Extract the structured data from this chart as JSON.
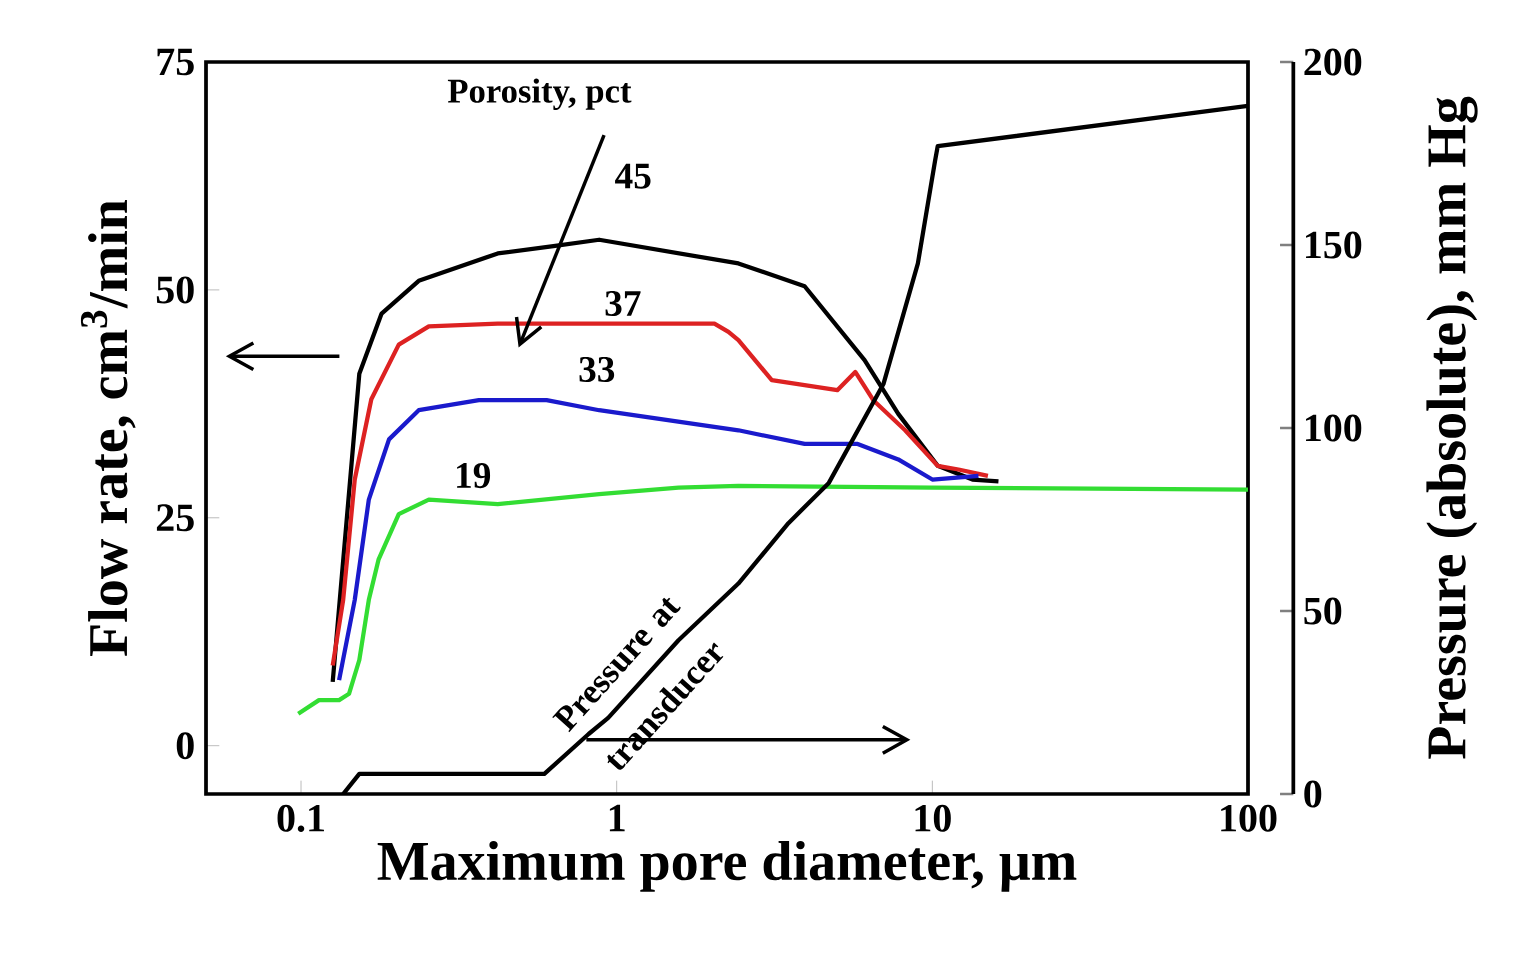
{
  "chart_data": {
    "type": "line",
    "xlabel": "Maximum pore diameter, μm",
    "ylabel": "Flow rate, cm$^{3}$/min",
    "y2label": "Pressure (absolute), mm Hg",
    "log": "x",
    "grid": false,
    "legend": false,
    "marker": "none",
    "line_style": "solid",
    "xlim": [
      0.05,
      100
    ],
    "xticks": [
      0.1,
      1,
      10,
      100
    ],
    "ylim": [
      -5.3,
      75
    ],
    "yticks": [
      0,
      25,
      50,
      75
    ],
    "y2lim": [
      0,
      200
    ],
    "y2ticks": [
      0,
      50,
      100,
      150,
      200
    ],
    "annotations": [
      "Porosity, pct"
    ],
    "series": [
      {
        "name": "45",
        "color": "#000000",
        "x": [
          0.126,
          0.153,
          0.18,
          0.236,
          0.42,
          0.63,
          0.88,
          2.43,
          3.94,
          6.1,
          7.8,
          10.4,
          13.4,
          16.2
        ],
        "values": [
          7,
          40.8,
          47.4,
          51,
          54,
          54.8,
          55.5,
          52.9,
          50.4,
          42.3,
          36.4,
          30.7,
          29.2,
          29
        ]
      },
      {
        "name": "37",
        "color": "#dd2222",
        "x": [
          0.126,
          0.136,
          0.148,
          0.167,
          0.204,
          0.254,
          0.42,
          0.88,
          2.04,
          2.26,
          2.43,
          3.1,
          5.0,
          5.7,
          6.5,
          8.2,
          10.4,
          12.1,
          15
        ],
        "values": [
          8.8,
          16,
          29.2,
          38,
          44,
          46,
          46.3,
          46.3,
          46.3,
          45.4,
          44.5,
          40.1,
          39,
          41,
          37.9,
          34.6,
          30.7,
          30.3,
          29.6
        ]
      },
      {
        "name": "33",
        "color": "#1a1acc",
        "x": [
          0.132,
          0.148,
          0.164,
          0.19,
          0.236,
          0.366,
          0.6,
          0.88,
          2.43,
          3.94,
          5.8,
          7.8,
          10,
          14
        ],
        "values": [
          7.2,
          16,
          27,
          33.6,
          36.8,
          37.9,
          37.9,
          36.8,
          34.6,
          33.1,
          33.1,
          31.4,
          29.2,
          29.6
        ]
      },
      {
        "name": "19",
        "color": "#33dd33",
        "x": [
          0.098,
          0.114,
          0.132,
          0.142,
          0.153,
          0.164,
          0.176,
          0.204,
          0.254,
          0.42,
          0.88,
          1.57,
          2.43,
          10,
          100
        ],
        "values": [
          3.5,
          5,
          5,
          5.7,
          9.4,
          16,
          20.4,
          25.4,
          27,
          26.5,
          27.6,
          28.3,
          28.5,
          28.3,
          28.1
        ]
      },
      {
        "name": "Pressure at transducer",
        "color": "#000000",
        "axis": "y2",
        "x": [
          0.136,
          0.153,
          0.59,
          0.815,
          0.94,
          1.57,
          2.43,
          3.5,
          4.7,
          7.0,
          9.0,
          10.2,
          10.4,
          100
        ],
        "values": [
          0,
          5.5,
          5.5,
          16.4,
          20.8,
          42,
          57.5,
          74,
          85,
          112,
          145,
          173,
          177,
          188
        ]
      }
    ]
  }
}
